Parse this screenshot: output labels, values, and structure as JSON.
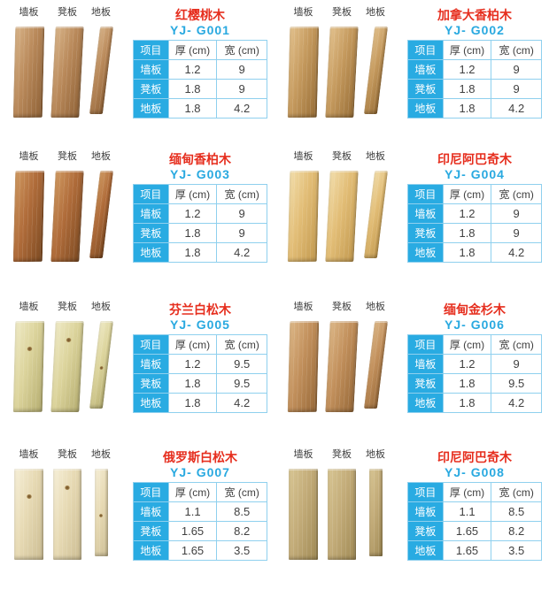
{
  "colors": {
    "name_red": "#e62e1e",
    "model_blue": "#29a9e0",
    "cell_blue": "#29abe2",
    "border_blue": "#8fd0ee",
    "text_dark": "#404040",
    "label_dark": "#3d3d3d",
    "page_bg": "#ffffff"
  },
  "labels": {
    "board_columns": [
      "墙板",
      "凳板",
      "地板"
    ],
    "table": {
      "item": "项目",
      "thickness": "厚 (cm)",
      "width": "宽 (cm)",
      "rows": [
        "墙板",
        "凳板",
        "地板"
      ]
    }
  },
  "icons": {
    "wall_board_photo": "wood-plank-photo",
    "bench_board_photo": "wood-plank-photo",
    "floor_board_photo": "wood-plank-photo"
  },
  "products": [
    {
      "name": "红樱桃木",
      "model": "YJ- G001",
      "specs": [
        [
          "1.2",
          "9"
        ],
        [
          "1.8",
          "9"
        ],
        [
          "1.8",
          "4.2"
        ]
      ],
      "board_style": {
        "base": "#b9895a",
        "light": "#d9b58a",
        "dark": "#8e6136",
        "shape": "lean",
        "knots": false
      }
    },
    {
      "name": "加拿大香柏木",
      "model": "YJ- G002",
      "specs": [
        [
          "1.2",
          "9"
        ],
        [
          "1.8",
          "9"
        ],
        [
          "1.8",
          "4.2"
        ]
      ],
      "board_style": {
        "base": "#c59a5e",
        "light": "#e3c28e",
        "dark": "#976d36",
        "shape": "lean",
        "knots": false
      }
    },
    {
      "name": "缅甸香柏木",
      "model": "YJ- G003",
      "specs": [
        [
          "1.2",
          "9"
        ],
        [
          "1.8",
          "9"
        ],
        [
          "1.8",
          "4.2"
        ]
      ],
      "board_style": {
        "base": "#b06c3a",
        "light": "#d09a62",
        "dark": "#7c4a22",
        "shape": "lean",
        "knots": false
      }
    },
    {
      "name": "印尼阿巴奇木",
      "model": "YJ- G004",
      "specs": [
        [
          "1.2",
          "9"
        ],
        [
          "1.8",
          "9"
        ],
        [
          "1.8",
          "4.2"
        ]
      ],
      "board_style": {
        "base": "#e2bd76",
        "light": "#f2deac",
        "dark": "#c1984e",
        "shape": "lean",
        "knots": false
      }
    },
    {
      "name": "芬兰白松木",
      "model": "YJ- G005",
      "specs": [
        [
          "1.2",
          "9.5"
        ],
        [
          "1.8",
          "9.5"
        ],
        [
          "1.8",
          "4.2"
        ]
      ],
      "board_style": {
        "base": "#dcd49c",
        "light": "#efeac6",
        "dark": "#b5ad70",
        "shape": "lean",
        "knots": true
      }
    },
    {
      "name": "缅甸金杉木",
      "model": "YJ- G006",
      "specs": [
        [
          "1.2",
          "9"
        ],
        [
          "1.8",
          "9.5"
        ],
        [
          "1.8",
          "4.2"
        ]
      ],
      "board_style": {
        "base": "#c2905c",
        "light": "#ddb888",
        "dark": "#966838",
        "shape": "lean",
        "knots": false
      }
    },
    {
      "name": "俄罗斯白松木",
      "model": "YJ- G007",
      "specs": [
        [
          "1.1",
          "8.5"
        ],
        [
          "1.65",
          "8.2"
        ],
        [
          "1.65",
          "3.5"
        ]
      ],
      "board_style": {
        "base": "#e7dab4",
        "light": "#f6efd8",
        "dark": "#cbbc92",
        "shape": "straight",
        "knots": true
      }
    },
    {
      "name": "印尼阿巴奇木",
      "model": "YJ- G008",
      "specs": [
        [
          "1.1",
          "8.5"
        ],
        [
          "1.65",
          "8.2"
        ],
        [
          "1.65",
          "3.5"
        ]
      ],
      "board_style": {
        "base": "#c3ac79",
        "light": "#d8c694",
        "dark": "#9f8954",
        "shape": "straight",
        "knots": false
      }
    }
  ]
}
